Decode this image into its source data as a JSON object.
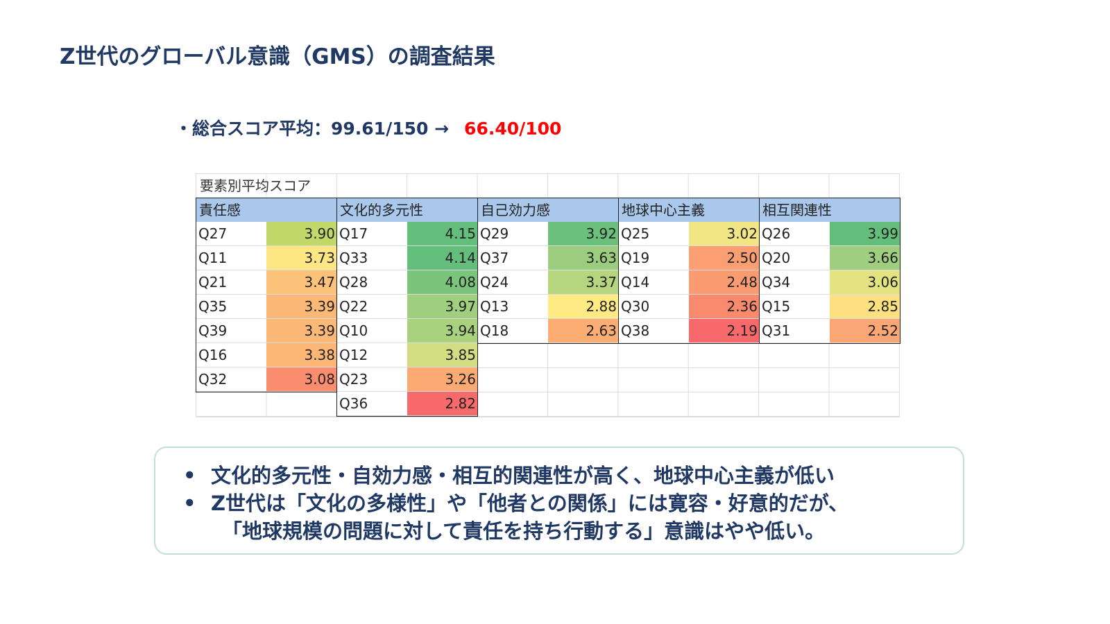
{
  "title": "Z世代のグローバル意識（GMS）の調査結果",
  "summary": {
    "prefix": "・総合スコア平均：99.61/150 →",
    "highlight": "66.40/100",
    "highlight_color": "#ff0000"
  },
  "table": {
    "title": "要素別平均スコア",
    "header_color": "#aac8eb",
    "groups": [
      {
        "name": "責任感",
        "rows": [
          {
            "q": "Q27",
            "v": "3.90",
            "color": "#c2d969"
          },
          {
            "q": "Q11",
            "v": "3.73",
            "color": "#fee783"
          },
          {
            "q": "Q21",
            "v": "3.47",
            "color": "#fdc27a"
          },
          {
            "q": "Q35",
            "v": "3.39",
            "color": "#fcb877"
          },
          {
            "q": "Q39",
            "v": "3.39",
            "color": "#fcb877"
          },
          {
            "q": "Q16",
            "v": "3.38",
            "color": "#fcb777"
          },
          {
            "q": "Q32",
            "v": "3.08",
            "color": "#f98d6d"
          }
        ]
      },
      {
        "name": "文化的多元性",
        "rows": [
          {
            "q": "Q17",
            "v": "4.15",
            "color": "#63be7b"
          },
          {
            "q": "Q33",
            "v": "4.14",
            "color": "#64be7b"
          },
          {
            "q": "Q28",
            "v": "4.08",
            "color": "#7ac47c"
          },
          {
            "q": "Q22",
            "v": "3.97",
            "color": "#a0d07f"
          },
          {
            "q": "Q10",
            "v": "3.94",
            "color": "#a9d27f"
          },
          {
            "q": "Q12",
            "v": "3.85",
            "color": "#d2dc81"
          },
          {
            "q": "Q23",
            "v": "3.26",
            "color": "#fbaa73"
          },
          {
            "q": "Q36",
            "v": "2.82",
            "color": "#f8696b"
          }
        ]
      },
      {
        "name": "自己効力感",
        "rows": [
          {
            "q": "Q29",
            "v": "3.92",
            "color": "#6bc17c"
          },
          {
            "q": "Q37",
            "v": "3.63",
            "color": "#9ccd7e"
          },
          {
            "q": "Q24",
            "v": "3.37",
            "color": "#b5d57f"
          },
          {
            "q": "Q13",
            "v": "2.88",
            "color": "#ffea84"
          },
          {
            "q": "Q18",
            "v": "2.63",
            "color": "#fbad74"
          }
        ]
      },
      {
        "name": "地球中心主義",
        "rows": [
          {
            "q": "Q25",
            "v": "3.02",
            "color": "#f1e683"
          },
          {
            "q": "Q19",
            "v": "2.50",
            "color": "#fb9e72"
          },
          {
            "q": "Q14",
            "v": "2.48",
            "color": "#fb9b71"
          },
          {
            "q": "Q30",
            "v": "2.36",
            "color": "#fa8a6e"
          },
          {
            "q": "Q38",
            "v": "2.19",
            "color": "#f8696b"
          }
        ]
      },
      {
        "name": "相互関連性",
        "rows": [
          {
            "q": "Q26",
            "v": "3.99",
            "color": "#63be7b"
          },
          {
            "q": "Q20",
            "v": "3.66",
            "color": "#9fcf7e"
          },
          {
            "q": "Q34",
            "v": "3.06",
            "color": "#e4e382"
          },
          {
            "q": "Q15",
            "v": "2.85",
            "color": "#fde080"
          },
          {
            "q": "Q31",
            "v": "2.52",
            "color": "#fba775"
          }
        ]
      }
    ]
  },
  "notes": {
    "bullet": "•",
    "line1": "文化的多元性・自効力感・相互的関連性が高く、地球中心主義が低い",
    "line2": "Z世代は「文化の多様性」や「他者との関係」には寛容・好意的だが、",
    "line3": "「地球規模の問題に対して責任を持ち行動する」意識はやや低い。"
  }
}
